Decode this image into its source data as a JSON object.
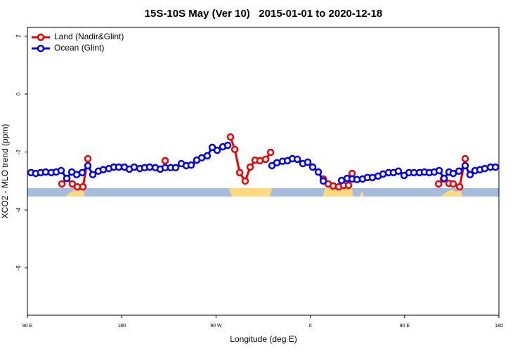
{
  "chart_data": {
    "type": "line",
    "title": "15S-10S May (Ver 10)   2015-01-01 to 2020-12-18",
    "xlabel": "Longitude (deg E)",
    "ylabel": "XCO2 - MLO trend (ppm)",
    "xlim": [
      90,
      540
    ],
    "ylim": [
      -7.63,
      2.3
    ],
    "xticks": [
      {
        "value": 90,
        "label": "90 E"
      },
      {
        "value": 180,
        "label": "180"
      },
      {
        "value": 270,
        "label": "90 W"
      },
      {
        "value": 360,
        "label": "0"
      },
      {
        "value": 450,
        "label": "90 E"
      },
      {
        "value": 540,
        "label": "180"
      }
    ],
    "yticks": [
      2,
      0,
      -2,
      -4,
      -6
    ],
    "legend": "top-left",
    "series": [
      {
        "name": "Land (Nadir&Glint)",
        "color": "#ee0000",
        "x": [
          122.9,
          127.6,
          132.9,
          137.6,
          143.0,
          147.7,
          null,
          221.5,
          null,
          283.8,
          287.9,
          292.6,
          297.9,
          302.6,
          307.3,
          312.0,
          317.4,
          322.1,
          null,
          372.4,
          377.1,
          381.8,
          387.1,
          391.8,
          396.5,
          399.9,
          null,
          482.4,
          487.1,
          492.4,
          496.4,
          502.5,
          507.8
        ],
        "values": [
          -3.1,
          -2.91,
          -3.1,
          -3.2,
          -3.2,
          -2.23,
          null,
          -2.3,
          null,
          -1.48,
          -1.91,
          -2.71,
          -3.0,
          -2.52,
          -2.28,
          -2.3,
          -2.25,
          -2.01,
          null,
          -2.93,
          -3.1,
          -3.17,
          -3.2,
          -3.15,
          -3.15,
          -2.74,
          null,
          -3.1,
          -2.93,
          -3.08,
          -3.1,
          -3.2,
          -2.23
        ]
      },
      {
        "name": "Ocean (Glint)",
        "color": "#0000ee",
        "x": [
          93.4,
          98.0,
          102.7,
          107.4,
          112.8,
          117.5,
          122.2,
          127.6,
          132.3,
          137.0,
          142.3,
          147.7,
          152.4,
          157.7,
          162.4,
          167.8,
          172.5,
          177.2,
          182.6,
          187.3,
          191.9,
          197.3,
          202.0,
          206.7,
          212.1,
          216.8,
          221.5,
          226.8,
          231.5,
          236.9,
          241.6,
          246.3,
          251.6,
          256.3,
          261.7,
          266.4,
          271.1,
          276.5,
          281.2,
          null,
          323.4,
          328.1,
          333.5,
          338.2,
          342.9,
          347.6,
          352.9,
          357.6,
          362.3,
          367.7,
          372.4,
          null,
          389.8,
          395.2,
          399.9,
          404.6,
          409.9,
          414.6,
          419.3,
          424.7,
          429.4,
          434.7,
          439.4,
          444.1,
          449.5,
          454.2,
          458.9,
          464.3,
          468.9,
          473.6,
          478.3,
          483.0,
          487.7,
          492.4,
          496.4,
          501.8,
          507.8,
          512.5,
          517.2,
          521.9,
          526.6,
          532.0,
          536.7
        ],
        "values": [
          -2.71,
          -2.74,
          -2.71,
          -2.69,
          -2.71,
          -2.69,
          -2.64,
          -2.91,
          -2.69,
          -2.78,
          -2.71,
          -2.47,
          -2.78,
          -2.66,
          -2.61,
          -2.57,
          -2.52,
          -2.52,
          -2.52,
          -2.59,
          -2.52,
          -2.57,
          -2.54,
          -2.52,
          -2.54,
          -2.59,
          -2.54,
          -2.54,
          -2.54,
          -2.4,
          -2.47,
          -2.45,
          -2.28,
          -2.2,
          -2.13,
          -1.84,
          -1.94,
          -1.82,
          -1.77,
          null,
          -2.47,
          -2.37,
          -2.32,
          -2.3,
          -2.23,
          -2.25,
          -2.4,
          -2.35,
          -2.52,
          -2.69,
          -3.0,
          null,
          -2.98,
          -2.91,
          -2.93,
          -2.95,
          -2.93,
          -2.88,
          -2.88,
          -2.83,
          -2.76,
          -2.71,
          -2.71,
          -2.66,
          -2.81,
          -2.71,
          -2.71,
          -2.71,
          -2.69,
          -2.71,
          -2.69,
          -2.64,
          -2.91,
          -2.69,
          -2.74,
          -2.66,
          -2.47,
          -2.78,
          -2.64,
          -2.61,
          -2.57,
          -2.52,
          -2.52
        ]
      }
    ]
  }
}
